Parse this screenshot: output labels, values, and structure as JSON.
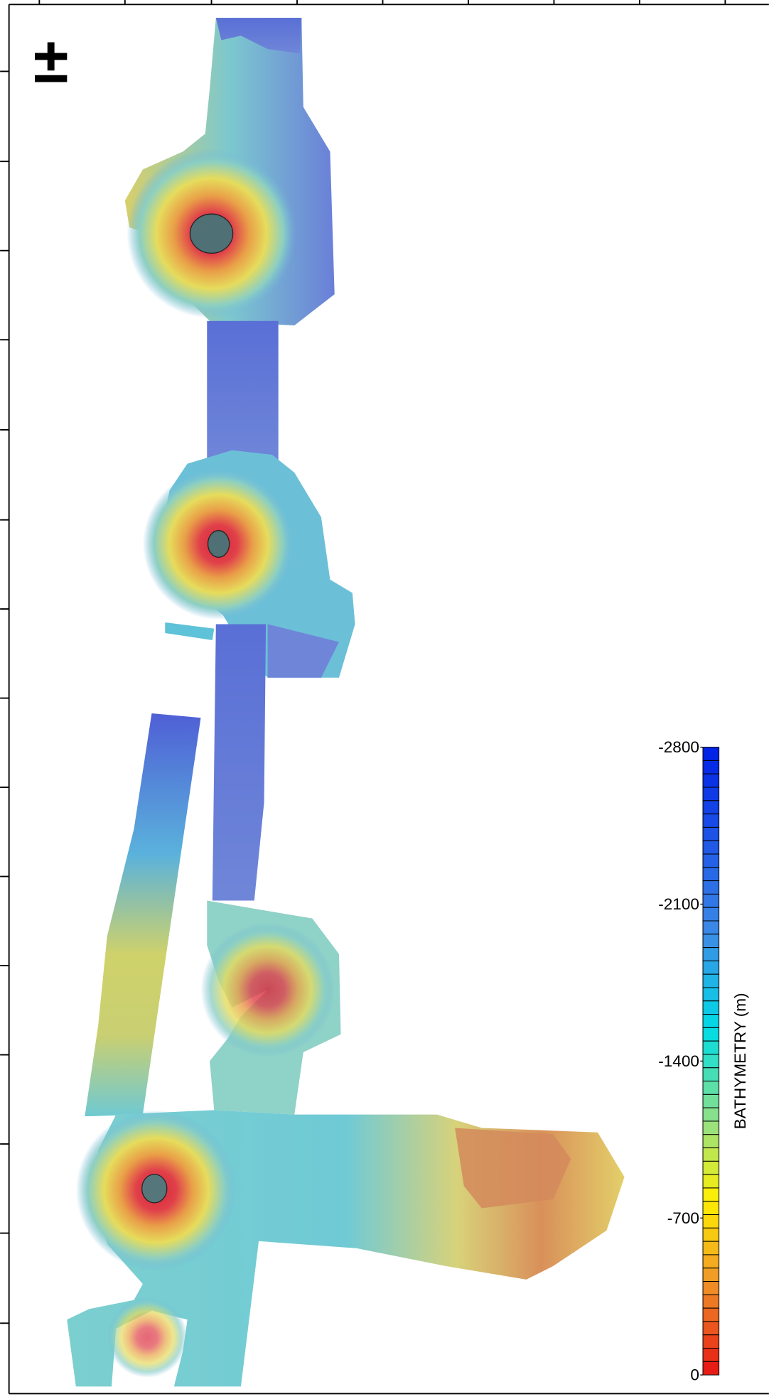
{
  "north_arrow": "±",
  "colorbar": {
    "label": "BATHYMETRY (m)",
    "range": [
      -2800,
      0
    ],
    "ticks": [
      -2800,
      -2100,
      -1400,
      -700,
      0
    ]
  }
}
